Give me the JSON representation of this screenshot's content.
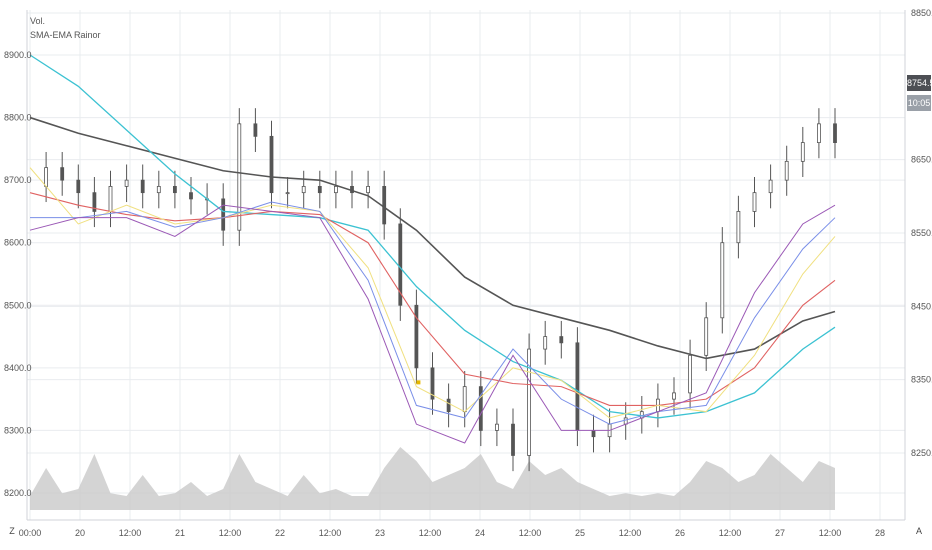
{
  "labels": {
    "volume": "Vol.",
    "indicator": "SMA-EMA Rainor"
  },
  "corner": {
    "left": "Z",
    "right": "A"
  },
  "price_badges": {
    "last": "8754.5",
    "time": "10:05"
  },
  "colors": {
    "grid": "#e9ecef",
    "candles": "#555555",
    "volume": "#c9c9c9",
    "sma_dark": "#555555",
    "ema_cyan": "#3cc2d2",
    "ema_red": "#e06262",
    "ema_yellow": "#f0e080",
    "ema_blue": "#7a8fe8",
    "ema_purple": "#9b59b6",
    "marker": "#e6b800"
  },
  "chart_data": {
    "type": "line",
    "left_axis": {
      "ticks": [
        "8900.0",
        "8800.0",
        "8700.0",
        "8600.0",
        "8500.0",
        "8400.0",
        "8300.0",
        "8200.0"
      ]
    },
    "right_axis": {
      "ticks": [
        "8850.0",
        "8650.0",
        "8550.0",
        "8450.0",
        "8350.0",
        "8250.0"
      ]
    },
    "x_ticks": [
      "00:00",
      "20",
      "12:00",
      "21",
      "12:00",
      "22",
      "12:00",
      "23",
      "12:00",
      "24",
      "12:00",
      "25",
      "12:00",
      "26",
      "12:00",
      "27",
      "12:00",
      "28"
    ],
    "x_index_range": [
      0,
      100
    ],
    "grid": true,
    "series": [
      {
        "name": "price_close",
        "x": [
          0,
          2,
          4,
          6,
          8,
          10,
          12,
          14,
          16,
          18,
          20,
          22,
          24,
          26,
          28,
          30,
          32,
          34,
          36,
          38,
          40,
          42,
          44,
          46,
          48,
          50,
          52,
          54,
          56,
          58,
          60,
          62,
          64,
          66,
          68,
          70,
          72,
          74,
          76,
          78,
          80,
          82,
          84,
          86,
          88,
          90,
          92,
          94,
          96,
          98,
          100
        ],
        "values": [
          8690,
          8720,
          8700,
          8680,
          8650,
          8690,
          8700,
          8680,
          8690,
          8680,
          8670,
          8670,
          8620,
          8790,
          8770,
          8680,
          8680,
          8690,
          8680,
          8690,
          8680,
          8690,
          8630,
          8500,
          8400,
          8350,
          8330,
          8370,
          8300,
          8310,
          8260,
          8430,
          8450,
          8440,
          8300,
          8290,
          8310,
          8320,
          8330,
          8350,
          8360,
          8420,
          8480,
          8600,
          8650,
          8680,
          8700,
          8730,
          8760,
          8790,
          8760
        ]
      },
      {
        "name": "SMA_dark",
        "x": [
          0,
          6,
          12,
          18,
          24,
          30,
          36,
          42,
          48,
          54,
          60,
          66,
          72,
          78,
          84,
          90,
          96,
          100
        ],
        "values": [
          8800,
          8775,
          8755,
          8735,
          8715,
          8705,
          8700,
          8675,
          8620,
          8545,
          8500,
          8480,
          8460,
          8435,
          8415,
          8430,
          8475,
          8490
        ]
      },
      {
        "name": "EMA_cyan",
        "x": [
          0,
          6,
          12,
          18,
          24,
          30,
          36,
          42,
          48,
          54,
          60,
          66,
          72,
          78,
          84,
          90,
          96,
          100
        ],
        "values": [
          8900,
          8850,
          8780,
          8710,
          8650,
          8645,
          8640,
          8620,
          8530,
          8460,
          8410,
          8380,
          8330,
          8320,
          8330,
          8360,
          8430,
          8465
        ]
      },
      {
        "name": "EMA_red",
        "x": [
          0,
          6,
          12,
          18,
          24,
          30,
          36,
          42,
          48,
          54,
          60,
          66,
          72,
          78,
          84,
          90,
          96,
          100
        ],
        "values": [
          8680,
          8660,
          8645,
          8635,
          8640,
          8650,
          8645,
          8600,
          8480,
          8390,
          8375,
          8370,
          8340,
          8340,
          8350,
          8400,
          8500,
          8540
        ]
      },
      {
        "name": "EMA_yellow",
        "x": [
          0,
          6,
          12,
          18,
          24,
          30,
          36,
          42,
          48,
          54,
          60,
          66,
          72,
          78,
          84,
          90,
          96,
          100
        ],
        "values": [
          8720,
          8630,
          8660,
          8630,
          8640,
          8660,
          8650,
          8560,
          8370,
          8330,
          8400,
          8380,
          8320,
          8340,
          8330,
          8420,
          8550,
          8610
        ]
      },
      {
        "name": "EMA_blue",
        "x": [
          0,
          6,
          12,
          18,
          24,
          30,
          36,
          42,
          48,
          54,
          60,
          66,
          72,
          78,
          84,
          90,
          96,
          100
        ],
        "values": [
          8640,
          8640,
          8650,
          8625,
          8640,
          8665,
          8650,
          8540,
          8340,
          8320,
          8430,
          8350,
          8310,
          8330,
          8340,
          8480,
          8590,
          8640
        ]
      },
      {
        "name": "EMA_purple",
        "x": [
          0,
          6,
          12,
          18,
          24,
          30,
          36,
          42,
          48,
          54,
          60,
          66,
          72,
          78,
          84,
          90,
          96,
          100
        ],
        "values": [
          8620,
          8640,
          8640,
          8610,
          8660,
          8650,
          8640,
          8510,
          8310,
          8280,
          8420,
          8300,
          8300,
          8330,
          8360,
          8520,
          8630,
          8660
        ]
      },
      {
        "name": "volume",
        "x": [
          0,
          2,
          4,
          6,
          8,
          10,
          12,
          14,
          16,
          18,
          20,
          22,
          24,
          26,
          28,
          30,
          32,
          34,
          36,
          38,
          40,
          42,
          44,
          46,
          48,
          50,
          52,
          54,
          56,
          58,
          60,
          62,
          64,
          66,
          68,
          70,
          72,
          74,
          76,
          78,
          80,
          82,
          84,
          86,
          88,
          90,
          92,
          94,
          96,
          98,
          100
        ],
        "values": [
          0.1,
          0.3,
          0.12,
          0.15,
          0.4,
          0.12,
          0.1,
          0.25,
          0.1,
          0.12,
          0.2,
          0.1,
          0.15,
          0.4,
          0.2,
          0.15,
          0.1,
          0.25,
          0.12,
          0.15,
          0.1,
          0.1,
          0.3,
          0.45,
          0.35,
          0.2,
          0.25,
          0.3,
          0.4,
          0.2,
          0.15,
          0.35,
          0.25,
          0.3,
          0.2,
          0.15,
          0.1,
          0.12,
          0.1,
          0.12,
          0.1,
          0.2,
          0.35,
          0.3,
          0.2,
          0.25,
          0.4,
          0.3,
          0.2,
          0.35,
          0.3
        ]
      }
    ]
  }
}
